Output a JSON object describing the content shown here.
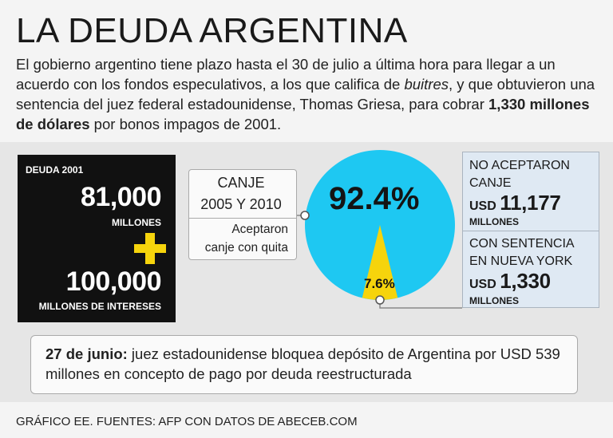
{
  "header": {
    "title": "LA DEUDA ARGENTINA",
    "intro_part1": "El gobierno argentino tiene plazo hasta el 30 de julio a última hora para llegar a un acuerdo con los fondos especulativos, a los que califica de ",
    "intro_italic": "buitres",
    "intro_part2": ", y que obtuvieron una sentencia del juez federal estadounidense, Thomas Griesa, para cobrar ",
    "intro_bold": "1,330 millones de dólares",
    "intro_part3": " por bonos impagos de 2001."
  },
  "debt_box": {
    "label": "DEUDA 2001",
    "principal": "81,000",
    "principal_unit": "MILLONES",
    "interest": "100,000",
    "interest_unit": "MILLONES DE INTERESES"
  },
  "canje": {
    "title_line1": "CANJE",
    "title_line2": "2005 Y 2010",
    "subtitle_line1": "Aceptaron",
    "subtitle_line2": "canje con quita"
  },
  "no_aceptaron": {
    "line1": "NO ACEPTARON",
    "line2": "CANJE",
    "currency": "USD",
    "amount": "11,177",
    "unit": "MILLONES"
  },
  "sentencia": {
    "line1": "CON SENTENCIA",
    "line2": "EN NUEVA YORK",
    "currency": "USD",
    "amount": "1,330",
    "unit": "MILLONES"
  },
  "news": {
    "date": "27 de junio:",
    "text": " juez estadounidense bloquea depósito de Argentina por USD 539 millones en concepto de pago por deuda reestructurada"
  },
  "credit": "GRÁFICO EE. FUENTES: AFP CON DATOS DE ABECEB.COM",
  "chart_data": {
    "type": "pie",
    "slices": [
      {
        "label": "Aceptaron canje con quita",
        "value": 92.4,
        "display": "92.4%",
        "color": "#1ec8f2"
      },
      {
        "label": "No aceptaron canje",
        "value": 7.6,
        "display": "7.6%",
        "color": "#f6d40c"
      }
    ]
  },
  "colors": {
    "pie_main": "#1ec8f2",
    "pie_minor": "#f6d40c",
    "accent_plus": "#f6d40c",
    "panel_blue": "#dfe9f3"
  }
}
